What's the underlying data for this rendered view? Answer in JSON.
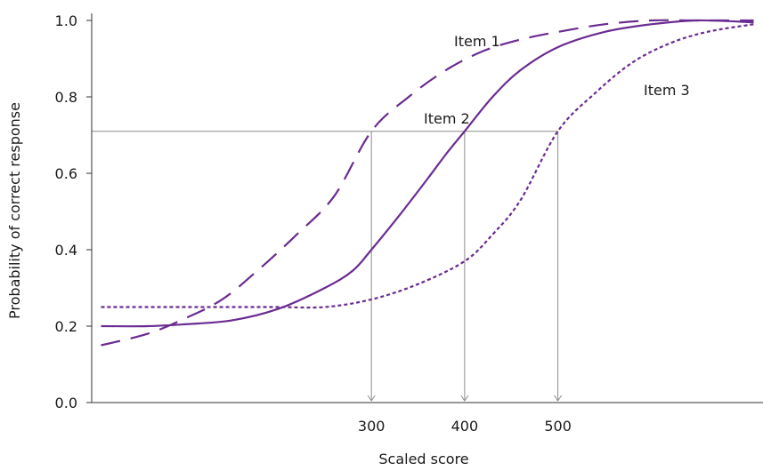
{
  "chart_data": {
    "type": "line",
    "title": "",
    "xlabel": "Scaled score",
    "ylabel": "Probability of correct response",
    "xlim": [
      0,
      720
    ],
    "ylim": [
      0,
      1.0
    ],
    "y_ticks": [
      {
        "value": 0.0,
        "label": "0.0"
      },
      {
        "value": 0.2,
        "label": "0.2"
      },
      {
        "value": 0.4,
        "label": "0.4"
      },
      {
        "value": 0.6,
        "label": "0.6"
      },
      {
        "value": 0.8,
        "label": "0.8"
      },
      {
        "value": 1.0,
        "label": "1.0"
      }
    ],
    "x_ticks": [
      {
        "value": 300,
        "label": "300"
      },
      {
        "value": 400,
        "label": "400"
      },
      {
        "value": 500,
        "label": "500"
      }
    ],
    "grid": false,
    "reference_level": 0.71,
    "reference_points": [
      300,
      400,
      500
    ],
    "series": [
      {
        "name": "Item 1",
        "style": "long-dash",
        "color": "#6a2c91",
        "x": [
          10,
          60,
          100,
          140,
          180,
          220,
          260,
          300,
          340,
          380,
          420,
          460,
          500,
          550,
          600,
          650,
          710
        ],
        "y": [
          0.15,
          0.18,
          0.22,
          0.27,
          0.35,
          0.44,
          0.54,
          0.71,
          0.8,
          0.87,
          0.92,
          0.95,
          0.97,
          0.99,
          1.0,
          1.0,
          1.0
        ]
      },
      {
        "name": "Item 2",
        "style": "solid",
        "color": "#6a2c91",
        "x": [
          10,
          60,
          100,
          150,
          200,
          250,
          280,
          300,
          330,
          360,
          380,
          400,
          430,
          460,
          500,
          550,
          600,
          650,
          710
        ],
        "y": [
          0.2,
          0.2,
          0.205,
          0.215,
          0.245,
          0.3,
          0.345,
          0.4,
          0.49,
          0.585,
          0.65,
          0.71,
          0.8,
          0.87,
          0.93,
          0.97,
          0.99,
          1.0,
          0.995
        ]
      },
      {
        "name": "Item 3",
        "style": "dotted",
        "color": "#6a2c91",
        "x": [
          10,
          60,
          100,
          150,
          200,
          250,
          300,
          350,
          400,
          430,
          460,
          500,
          540,
          580,
          620,
          660,
          710
        ],
        "y": [
          0.25,
          0.25,
          0.25,
          0.25,
          0.25,
          0.25,
          0.27,
          0.31,
          0.37,
          0.44,
          0.53,
          0.71,
          0.81,
          0.89,
          0.94,
          0.97,
          0.99
        ]
      }
    ]
  }
}
